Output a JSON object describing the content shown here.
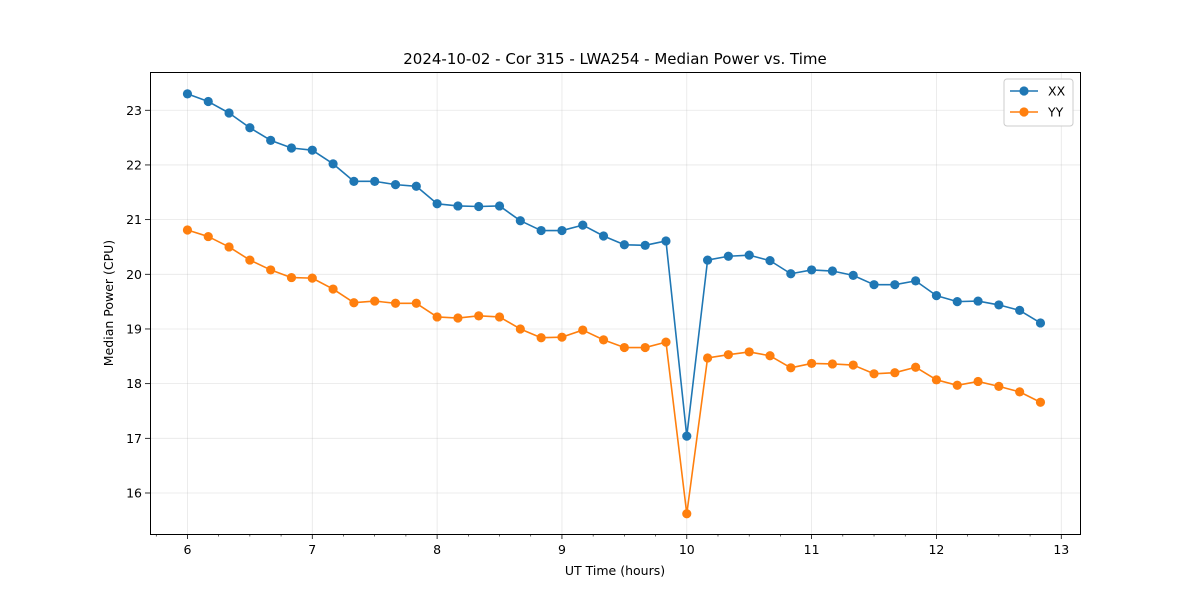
{
  "chart_data": {
    "type": "line",
    "title": "2024-10-02 - Cor 315 - LWA254 - Median Power vs. Time",
    "xlabel": "UT Time (hours)",
    "ylabel": "Median Power (CPU)",
    "xlim": [
      5.7,
      13.15
    ],
    "ylim": [
      15.25,
      23.7
    ],
    "xticks": [
      6,
      7,
      8,
      9,
      10,
      11,
      12,
      13
    ],
    "xtick_labels": [
      "6",
      "7",
      "8",
      "9",
      "10",
      "11",
      "12",
      "13"
    ],
    "yticks": [
      16,
      17,
      18,
      19,
      20,
      21,
      22,
      23
    ],
    "ytick_labels": [
      "16",
      "17",
      "18",
      "19",
      "20",
      "21",
      "22",
      "23"
    ],
    "grid": true,
    "legend_position": "top-right",
    "x": [
      6.0,
      6.1667,
      6.3333,
      6.5,
      6.6667,
      6.8333,
      7.0,
      7.1667,
      7.3333,
      7.5,
      7.6667,
      7.8333,
      8.0,
      8.1667,
      8.3333,
      8.5,
      8.6667,
      8.8333,
      9.0,
      9.1667,
      9.3333,
      9.5,
      9.6667,
      9.8333,
      10.0,
      10.1667,
      10.3333,
      10.5,
      10.6667,
      10.8333,
      11.0,
      11.1667,
      11.3333,
      11.5,
      11.6667,
      11.8333,
      12.0,
      12.1667,
      12.3333,
      12.5,
      12.6667,
      12.8333
    ],
    "series": [
      {
        "name": "XX",
        "color": "#1f77b4",
        "values": [
          23.3,
          23.16,
          22.95,
          22.68,
          22.45,
          22.31,
          22.27,
          22.02,
          21.7,
          21.7,
          21.64,
          21.61,
          21.29,
          21.25,
          21.24,
          21.25,
          20.98,
          20.8,
          20.8,
          20.9,
          20.7,
          20.54,
          20.53,
          20.61,
          17.04,
          20.26,
          20.33,
          20.35,
          20.25,
          20.01,
          20.08,
          20.06,
          19.98,
          19.81,
          19.81,
          19.88,
          19.61,
          19.5,
          19.51,
          19.44,
          19.34,
          19.11
        ]
      },
      {
        "name": "YY",
        "color": "#ff7f0e",
        "values": [
          20.81,
          20.69,
          20.5,
          20.26,
          20.08,
          19.94,
          19.93,
          19.73,
          19.48,
          19.51,
          19.47,
          19.47,
          19.22,
          19.2,
          19.24,
          19.22,
          19.0,
          18.84,
          18.85,
          18.98,
          18.8,
          18.66,
          18.66,
          18.76,
          15.62,
          18.47,
          18.53,
          18.58,
          18.51,
          18.29,
          18.37,
          18.36,
          18.34,
          18.18,
          18.2,
          18.3,
          18.07,
          17.97,
          18.04,
          17.95,
          17.85,
          17.66
        ]
      }
    ]
  }
}
